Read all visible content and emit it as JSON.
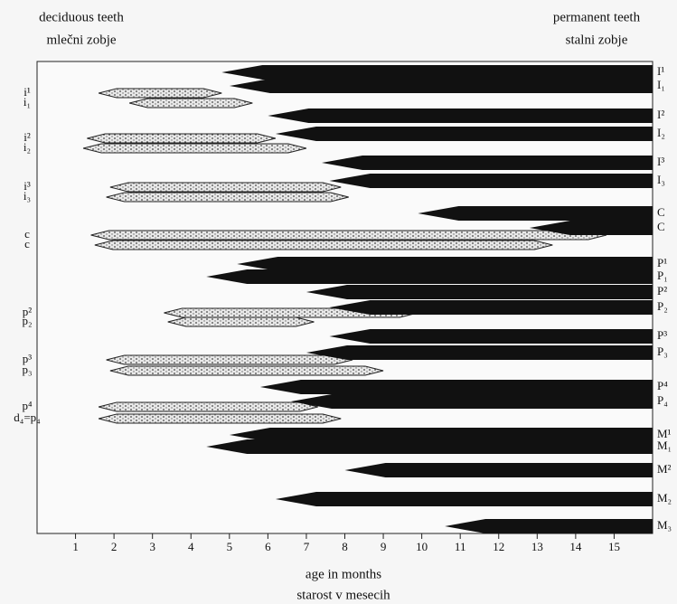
{
  "chart_data": {
    "type": "range",
    "title_left": "deciduous teeth",
    "subtitle_left": "mlečni zobje",
    "title_right": "permanent teeth",
    "subtitle_right": "stalni zobje",
    "x_label": "age in months",
    "x_label_2": "starost v mesecih",
    "xlim": [
      0,
      16
    ],
    "xticks": [
      1,
      2,
      3,
      4,
      5,
      6,
      7,
      8,
      9,
      10,
      11,
      12,
      13,
      14,
      15
    ],
    "deciduous": {
      "color": "#dddddd",
      "rows": [
        {
          "label": "i¹",
          "start": 1.6,
          "end": 4.8
        },
        {
          "label": "i₁",
          "start": 2.4,
          "end": 5.6
        },
        {
          "label": "i²",
          "start": 1.3,
          "end": 6.2
        },
        {
          "label": "i₂",
          "start": 1.2,
          "end": 7.0
        },
        {
          "label": "i³",
          "start": 1.9,
          "end": 7.9
        },
        {
          "label": "i₃",
          "start": 1.8,
          "end": 8.1
        },
        {
          "label": "c",
          "start": 1.4,
          "end": 14.8
        },
        {
          "label": "c",
          "start": 1.5,
          "end": 13.4
        },
        {
          "label": "p²",
          "start": 3.3,
          "end": 9.9
        },
        {
          "label": "p₂",
          "start": 3.4,
          "end": 7.2
        },
        {
          "label": "p³",
          "start": 1.8,
          "end": 8.2
        },
        {
          "label": "p₃",
          "start": 1.9,
          "end": 9.0
        },
        {
          "label": "p⁴",
          "start": 1.6,
          "end": 7.3
        },
        {
          "label": "d₄=p₄",
          "start": 1.6,
          "end": 7.9
        }
      ]
    },
    "permanent": {
      "color": "#111111",
      "rows": [
        {
          "label": "I¹",
          "start": 4.8,
          "end": 16
        },
        {
          "label": "I₁",
          "start": 5.0,
          "end": 16
        },
        {
          "label": "I²",
          "start": 6.0,
          "end": 16
        },
        {
          "label": "I₂",
          "start": 6.2,
          "end": 16
        },
        {
          "label": "I³",
          "start": 7.4,
          "end": 16
        },
        {
          "label": "I₃",
          "start": 7.6,
          "end": 16
        },
        {
          "label": "C",
          "start": 9.9,
          "end": 16
        },
        {
          "label": "C",
          "start": 12.8,
          "end": 16
        },
        {
          "label": "P¹",
          "start": 5.2,
          "end": 16
        },
        {
          "label": "P₁",
          "start": 4.4,
          "end": 16
        },
        {
          "label": "P²",
          "start": 7.0,
          "end": 16
        },
        {
          "label": "P₂",
          "start": 7.6,
          "end": 16
        },
        {
          "label": "P³",
          "start": 7.6,
          "end": 16
        },
        {
          "label": "P₃",
          "start": 7.0,
          "end": 16
        },
        {
          "label": "P⁴",
          "start": 5.8,
          "end": 16
        },
        {
          "label": "P₄",
          "start": 6.6,
          "end": 16
        },
        {
          "label": "M¹",
          "start": 5.0,
          "end": 16
        },
        {
          "label": "M₁",
          "start": 4.4,
          "end": 16
        },
        {
          "label": "M²",
          "start": 8.0,
          "end": 16
        },
        {
          "label": "M₂",
          "start": 6.2,
          "end": 16
        },
        {
          "label": "M₃",
          "start": 10.6,
          "end": 16
        }
      ]
    }
  }
}
